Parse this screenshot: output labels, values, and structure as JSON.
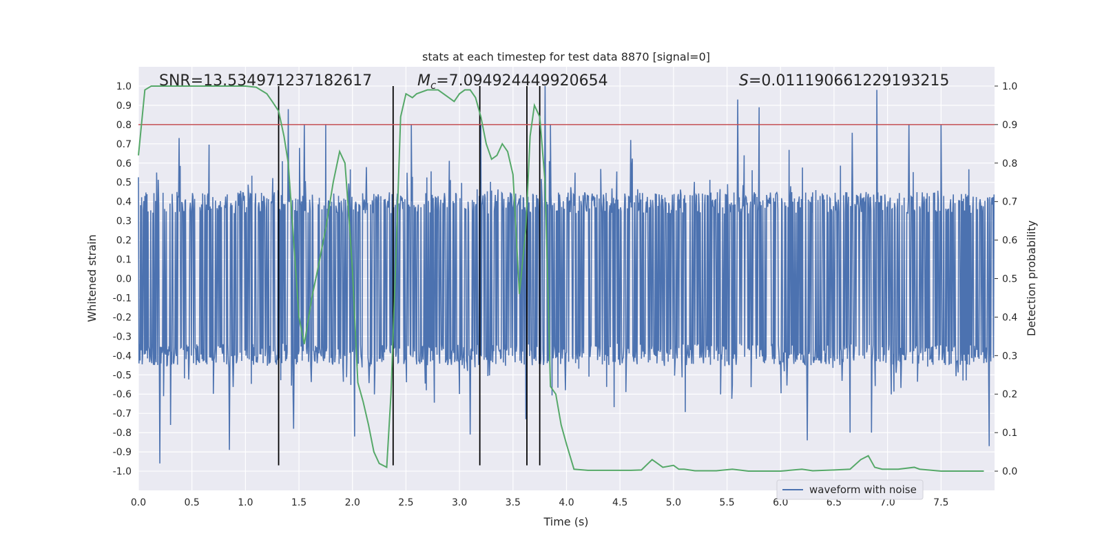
{
  "chart_data": {
    "type": "line",
    "title": "stats at each timestep for test data 8870 [signal=0]",
    "xlabel": "Time (s)",
    "ylabel_left": "Whitened strain",
    "ylabel_right": "Detection probability",
    "xlim": [
      0.0,
      8.0
    ],
    "ylim_left": [
      -1.1,
      1.1
    ],
    "ylim_right": [
      -0.05,
      1.05
    ],
    "x_ticks": [
      "0.0",
      "0.5",
      "1.0",
      "1.5",
      "2.0",
      "2.5",
      "3.0",
      "3.5",
      "4.0",
      "4.5",
      "5.0",
      "5.5",
      "6.0",
      "6.5",
      "7.0",
      "7.5"
    ],
    "y_ticks_left": [
      "-1.0",
      "-0.9",
      "-0.8",
      "-0.7",
      "-0.6",
      "-0.5",
      "-0.4",
      "-0.3",
      "-0.2",
      "-0.1",
      "0.0",
      "0.1",
      "0.2",
      "0.3",
      "0.4",
      "0.5",
      "0.6",
      "0.7",
      "0.8",
      "0.9",
      "1.0"
    ],
    "y_ticks_right": [
      "0.0",
      "0.1",
      "0.2",
      "0.3",
      "0.4",
      "0.5",
      "0.6",
      "0.7",
      "0.8",
      "0.9",
      "1.0"
    ],
    "grid": true,
    "legend": {
      "position": "bottom-right",
      "entries": [
        "waveform with noise"
      ]
    },
    "annotations": {
      "snr": "SNR=13.534971237182617",
      "mc_symbol": "M",
      "mc_sub": "c",
      "mc_value": "=7.094924449920654",
      "s_symbol": "S",
      "s_value": "=0.011190661229193215"
    },
    "threshold": {
      "axis": "right",
      "value": 0.9,
      "color": "#c44e52"
    },
    "vertical_lines": [
      1.31,
      2.38,
      3.19,
      3.63,
      3.75
    ],
    "vertical_line_range": [
      -0.97,
      1.0
    ],
    "waveform": {
      "name": "waveform with noise",
      "color": "#4c72b0",
      "duration": 8.0,
      "samples": 1600,
      "amplitude_core": 0.45,
      "peaks_up": [
        [
          1.4,
          0.88
        ],
        [
          1.55,
          0.8
        ],
        [
          1.75,
          0.8
        ],
        [
          2.55,
          0.8
        ],
        [
          3.2,
          0.8
        ],
        [
          3.8,
          1.0
        ],
        [
          3.85,
          0.8
        ],
        [
          5.6,
          0.93
        ],
        [
          5.8,
          0.89
        ],
        [
          6.9,
          0.98
        ],
        [
          7.2,
          0.8
        ],
        [
          7.5,
          0.8
        ],
        [
          0.38,
          0.73
        ],
        [
          4.6,
          0.72
        ]
      ],
      "peaks_down": [
        [
          0.2,
          -0.96
        ],
        [
          0.85,
          -0.89
        ],
        [
          1.45,
          -0.78
        ],
        [
          2.02,
          -0.82
        ],
        [
          3.1,
          -0.81
        ],
        [
          3.62,
          -0.73
        ],
        [
          6.25,
          -0.84
        ],
        [
          6.65,
          -0.8
        ],
        [
          6.85,
          -0.8
        ],
        [
          7.95,
          -0.87
        ],
        [
          0.3,
          -0.76
        ]
      ]
    },
    "probability": {
      "name": "detection probability",
      "color": "#55a868",
      "x": [
        0.0,
        0.06,
        0.12,
        0.2,
        0.3,
        0.5,
        0.7,
        0.9,
        1.0,
        1.1,
        1.2,
        1.25,
        1.31,
        1.36,
        1.4,
        1.45,
        1.5,
        1.55,
        1.62,
        1.68,
        1.75,
        1.82,
        1.88,
        1.93,
        1.97,
        2.0,
        2.05,
        2.1,
        2.15,
        2.2,
        2.25,
        2.32,
        2.36,
        2.4,
        2.45,
        2.5,
        2.56,
        2.6,
        2.7,
        2.8,
        2.9,
        2.95,
        3.0,
        3.05,
        3.1,
        3.15,
        3.2,
        3.25,
        3.3,
        3.35,
        3.4,
        3.45,
        3.5,
        3.56,
        3.62,
        3.66,
        3.7,
        3.75,
        3.8,
        3.85,
        3.9,
        3.95,
        4.0,
        4.07,
        4.2,
        4.4,
        4.6,
        4.7,
        4.8,
        4.85,
        4.9,
        5.0,
        5.05,
        5.1,
        5.2,
        5.4,
        5.55,
        5.7,
        6.0,
        6.2,
        6.3,
        6.5,
        6.65,
        6.75,
        6.82,
        6.88,
        6.95,
        7.1,
        7.25,
        7.3,
        7.5,
        7.9
      ],
      "y": [
        0.82,
        0.99,
        1.0,
        1.0,
        1.0,
        1.0,
        1.0,
        1.0,
        1.0,
        0.997,
        0.98,
        0.96,
        0.935,
        0.87,
        0.8,
        0.6,
        0.4,
        0.33,
        0.45,
        0.53,
        0.63,
        0.75,
        0.83,
        0.8,
        0.65,
        0.52,
        0.23,
        0.18,
        0.12,
        0.05,
        0.02,
        0.01,
        0.2,
        0.51,
        0.92,
        0.98,
        0.97,
        0.98,
        0.99,
        0.99,
        0.97,
        0.96,
        0.98,
        0.99,
        0.99,
        0.97,
        0.92,
        0.85,
        0.81,
        0.82,
        0.85,
        0.83,
        0.77,
        0.46,
        0.63,
        0.87,
        0.95,
        0.92,
        0.75,
        0.22,
        0.2,
        0.12,
        0.07,
        0.005,
        0.002,
        0.002,
        0.002,
        0.003,
        0.03,
        0.02,
        0.01,
        0.015,
        0.005,
        0.005,
        0.001,
        0.001,
        0.005,
        0.0,
        0.0,
        0.005,
        0.001,
        0.003,
        0.005,
        0.03,
        0.04,
        0.01,
        0.005,
        0.005,
        0.01,
        0.005,
        0.0,
        0.0
      ]
    }
  }
}
